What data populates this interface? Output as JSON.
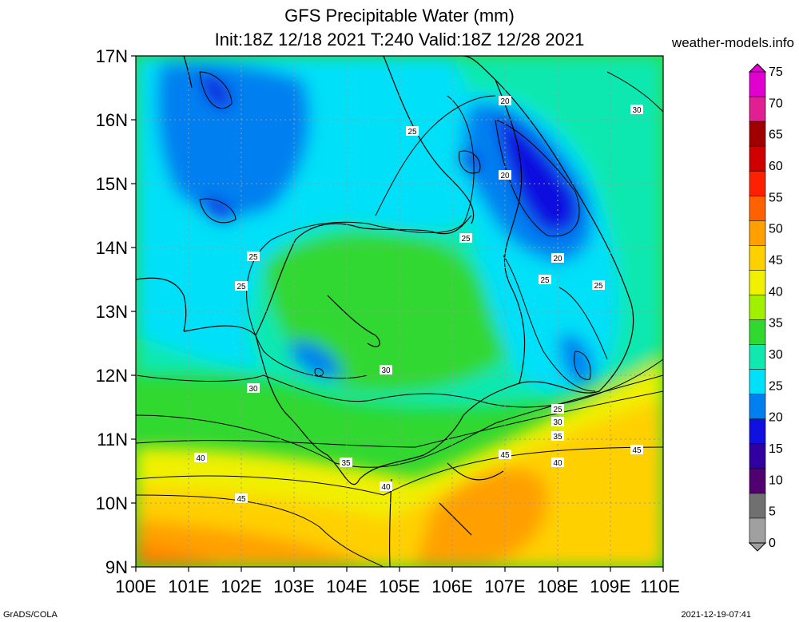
{
  "header": {
    "title_line1": "GFS Precipitable Water (mm)",
    "title_line2": "Init:18Z 12/18 2021 T:240 Valid:18Z 12/28 2021",
    "site": "weather-models.info"
  },
  "footer": {
    "credit": "GrADS/COLA",
    "timestamp": "2021-12-19-07:41"
  },
  "axes": {
    "lat_labels": [
      "17N",
      "16N",
      "15N",
      "14N",
      "13N",
      "12N",
      "11N",
      "10N",
      "9N"
    ],
    "lon_labels": [
      "100E",
      "101E",
      "102E",
      "103E",
      "104E",
      "105E",
      "106E",
      "107E",
      "108E",
      "109E",
      "110E"
    ]
  },
  "colorbar": {
    "levels": [
      "75",
      "70",
      "65",
      "60",
      "55",
      "50",
      "45",
      "40",
      "35",
      "30",
      "25",
      "20",
      "15",
      "10",
      "5",
      "0"
    ],
    "colors": [
      "#e000d0",
      "#e02090",
      "#a00000",
      "#d00000",
      "#ff2000",
      "#ff6000",
      "#ffa000",
      "#ffd000",
      "#f0f000",
      "#a0f000",
      "#30d830",
      "#10e8b0",
      "#00e0f8",
      "#0080f0",
      "#1010e0",
      "#3000a0",
      "#500070",
      "#707070",
      "#a0a0a0"
    ]
  },
  "contour_labels": [
    {
      "text": "20"
    },
    {
      "text": "20"
    },
    {
      "text": "20"
    },
    {
      "text": "25"
    },
    {
      "text": "25"
    },
    {
      "text": "25"
    },
    {
      "text": "25"
    },
    {
      "text": "25"
    },
    {
      "text": "25"
    },
    {
      "text": "25"
    },
    {
      "text": "30"
    },
    {
      "text": "30"
    },
    {
      "text": "30"
    },
    {
      "text": "30"
    },
    {
      "text": "35"
    },
    {
      "text": "35"
    },
    {
      "text": "40"
    },
    {
      "text": "40"
    },
    {
      "text": "40"
    },
    {
      "text": "45"
    },
    {
      "text": "45"
    },
    {
      "text": "45"
    }
  ]
}
